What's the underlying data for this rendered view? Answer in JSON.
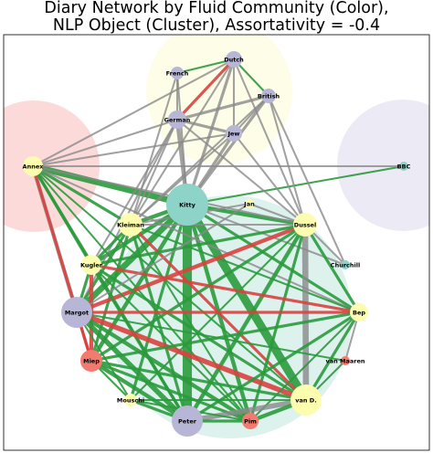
{
  "title": {
    "line1": "Diary Network by Fluid Community (Color),",
    "line2": "NLP Object (Cluster), Assortativity = -0.4"
  },
  "palette": {
    "community_purple": "#b8b6d6",
    "community_yellow": "#fdfdb0",
    "community_teal": "#8dd3c7",
    "community_salmon": "#f27a6e",
    "edge_green": "#2a9a3c",
    "edge_red": "#d8423f",
    "edge_gray": "#8a8a8a",
    "cluster_red": "#fbd3d3",
    "cluster_yellow": "#fdfde4",
    "cluster_lavender": "#e9e8f3",
    "cluster_teal": "#d7eeea"
  },
  "nodes": [
    {
      "id": "Kitty",
      "label": "Kitty",
      "community": "teal"
    },
    {
      "id": "Dutch",
      "label": "Dutch",
      "community": "purple"
    },
    {
      "id": "French",
      "label": "French",
      "community": "purple"
    },
    {
      "id": "British",
      "label": "British",
      "community": "purple"
    },
    {
      "id": "German",
      "label": "German",
      "community": "purple"
    },
    {
      "id": "Jew",
      "label": "Jew",
      "community": "purple"
    },
    {
      "id": "Annex",
      "label": "Annex",
      "community": "yellow"
    },
    {
      "id": "BBC",
      "label": "BBC",
      "community": "teal"
    },
    {
      "id": "Jan",
      "label": "Jan",
      "community": "yellow"
    },
    {
      "id": "Kleiman",
      "label": "Kleiman",
      "community": "yellow"
    },
    {
      "id": "Dussel",
      "label": "Dussel",
      "community": "yellow"
    },
    {
      "id": "Kugler",
      "label": "Kugler",
      "community": "yellow"
    },
    {
      "id": "Churchill",
      "label": "Churchill",
      "community": "teal"
    },
    {
      "id": "Margot",
      "label": "Margot",
      "community": "purple"
    },
    {
      "id": "Bep",
      "label": "Bep",
      "community": "yellow"
    },
    {
      "id": "Miep",
      "label": "Miep",
      "community": "salmon"
    },
    {
      "id": "vanMaaren",
      "label": "van Maaren",
      "community": "salmon"
    },
    {
      "id": "Mouschi",
      "label": "Mouschi",
      "community": "yellow"
    },
    {
      "id": "vanD",
      "label": "van D.",
      "community": "yellow"
    },
    {
      "id": "Peter",
      "label": "Peter",
      "community": "purple"
    },
    {
      "id": "Pim",
      "label": "Pim",
      "community": "salmon"
    }
  ],
  "edges": [
    {
      "source": "Kitty",
      "target": "Peter",
      "color": "green",
      "weight": 8
    },
    {
      "source": "Kitty",
      "target": "vanD",
      "color": "green",
      "weight": 7
    },
    {
      "source": "Kitty",
      "target": "Margot",
      "color": "green",
      "weight": 5
    },
    {
      "source": "Kitty",
      "target": "Annex",
      "color": "green",
      "weight": 5
    },
    {
      "source": "Kitty",
      "target": "Dussel",
      "color": "green",
      "weight": 3
    },
    {
      "source": "Kitty",
      "target": "Kugler",
      "color": "green",
      "weight": 3
    },
    {
      "source": "Kitty",
      "target": "Miep",
      "color": "green",
      "weight": 3
    },
    {
      "source": "Kitty",
      "target": "Pim",
      "color": "green",
      "weight": 3
    },
    {
      "source": "Kitty",
      "target": "Mouschi",
      "color": "green",
      "weight": 2
    },
    {
      "source": "Kitty",
      "target": "Bep",
      "color": "green",
      "weight": 2
    },
    {
      "source": "Kitty",
      "target": "BBC",
      "color": "green",
      "weight": 1
    },
    {
      "source": "Kitty",
      "target": "Kleiman",
      "color": "green",
      "weight": 3
    },
    {
      "source": "Kitty",
      "target": "German",
      "color": "gray",
      "weight": 3
    },
    {
      "source": "Kitty",
      "target": "Jew",
      "color": "gray",
      "weight": 2
    },
    {
      "source": "Kitty",
      "target": "British",
      "color": "gray",
      "weight": 2
    },
    {
      "source": "Kitty",
      "target": "Dutch",
      "color": "gray",
      "weight": 2
    },
    {
      "source": "Kitty",
      "target": "French",
      "color": "gray",
      "weight": 1
    },
    {
      "source": "Kitty",
      "target": "Churchill",
      "color": "gray",
      "weight": 1
    },
    {
      "source": "Dutch",
      "target": "German",
      "color": "red",
      "weight": 2
    },
    {
      "source": "Dutch",
      "target": "Jew",
      "color": "gray",
      "weight": 1
    },
    {
      "source": "Dutch",
      "target": "British",
      "color": "green",
      "weight": 1
    },
    {
      "source": "Dutch",
      "target": "French",
      "color": "green",
      "weight": 1
    },
    {
      "source": "Dutch",
      "target": "Annex",
      "color": "gray",
      "weight": 1
    },
    {
      "source": "Dutch",
      "target": "Kleiman",
      "color": "gray",
      "weight": 1
    },
    {
      "source": "Dutch",
      "target": "Dussel",
      "color": "gray",
      "weight": 1
    },
    {
      "source": "British",
      "target": "German",
      "color": "gray",
      "weight": 2
    },
    {
      "source": "British",
      "target": "Jew",
      "color": "gray",
      "weight": 1
    },
    {
      "source": "British",
      "target": "Dussel",
      "color": "gray",
      "weight": 1
    },
    {
      "source": "British",
      "target": "Kleiman",
      "color": "gray",
      "weight": 1
    },
    {
      "source": "French",
      "target": "German",
      "color": "gray",
      "weight": 1
    },
    {
      "source": "French",
      "target": "Kleiman",
      "color": "gray",
      "weight": 1
    },
    {
      "source": "German",
      "target": "Jew",
      "color": "gray",
      "weight": 2
    },
    {
      "source": "German",
      "target": "Annex",
      "color": "gray",
      "weight": 1
    },
    {
      "source": "German",
      "target": "Margot",
      "color": "gray",
      "weight": 1
    },
    {
      "source": "German",
      "target": "Dussel",
      "color": "gray",
      "weight": 1
    },
    {
      "source": "German",
      "target": "Kleiman",
      "color": "gray",
      "weight": 1
    },
    {
      "source": "German",
      "target": "Kugler",
      "color": "gray",
      "weight": 1
    },
    {
      "source": "Jew",
      "target": "Annex",
      "color": "gray",
      "weight": 1
    },
    {
      "source": "Jew",
      "target": "Dussel",
      "color": "gray",
      "weight": 1
    },
    {
      "source": "Jew",
      "target": "Kleiman",
      "color": "gray",
      "weight": 1
    },
    {
      "source": "Annex",
      "target": "Dussel",
      "color": "gray",
      "weight": 1
    },
    {
      "source": "Annex",
      "target": "Kleiman",
      "color": "green",
      "weight": 2
    },
    {
      "source": "Annex",
      "target": "Kugler",
      "color": "green",
      "weight": 2
    },
    {
      "source": "Annex",
      "target": "Margot",
      "color": "gray",
      "weight": 3
    },
    {
      "source": "Annex",
      "target": "Miep",
      "color": "red",
      "weight": 2
    },
    {
      "source": "Annex",
      "target": "Peter",
      "color": "green",
      "weight": 2
    },
    {
      "source": "Annex",
      "target": "vanD",
      "color": "green",
      "weight": 1
    },
    {
      "source": "Annex",
      "target": "Bep",
      "color": "gray",
      "weight": 1
    },
    {
      "source": "Annex",
      "target": "BBC",
      "color": "gray",
      "weight": 1
    },
    {
      "source": "Annex",
      "target": "Pim",
      "color": "green",
      "weight": 1
    },
    {
      "source": "Kleiman",
      "target": "Dussel",
      "color": "gray",
      "weight": 1
    },
    {
      "source": "Kleiman",
      "target": "Kugler",
      "color": "green",
      "weight": 2
    },
    {
      "source": "Kleiman",
      "target": "Margot",
      "color": "green",
      "weight": 2
    },
    {
      "source": "Kleiman",
      "target": "Peter",
      "color": "green",
      "weight": 2
    },
    {
      "source": "Kleiman",
      "target": "vanD",
      "color": "red",
      "weight": 2
    },
    {
      "source": "Kleiman",
      "target": "Bep",
      "color": "green",
      "weight": 1
    },
    {
      "source": "Kleiman",
      "target": "Miep",
      "color": "green",
      "weight": 2
    },
    {
      "source": "Kleiman",
      "target": "Pim",
      "color": "green",
      "weight": 1
    },
    {
      "source": "Dussel",
      "target": "Margot",
      "color": "red",
      "weight": 3
    },
    {
      "source": "Dussel",
      "target": "Peter",
      "color": "green",
      "weight": 3
    },
    {
      "source": "Dussel",
      "target": "vanD",
      "color": "gray",
      "weight": 5
    },
    {
      "source": "Dussel",
      "target": "Miep",
      "color": "green",
      "weight": 2
    },
    {
      "source": "Dussel",
      "target": "Kugler",
      "color": "green",
      "weight": 2
    },
    {
      "source": "Dussel",
      "target": "Bep",
      "color": "green",
      "weight": 2
    },
    {
      "source": "Dussel",
      "target": "Pim",
      "color": "green",
      "weight": 2
    },
    {
      "source": "Dussel",
      "target": "Mouschi",
      "color": "green",
      "weight": 1
    },
    {
      "source": "Dussel",
      "target": "Jan",
      "color": "gray",
      "weight": 1
    },
    {
      "source": "Kugler",
      "target": "Margot",
      "color": "green",
      "weight": 2
    },
    {
      "source": "Kugler",
      "target": "Miep",
      "color": "red",
      "weight": 3
    },
    {
      "source": "Kugler",
      "target": "Peter",
      "color": "green",
      "weight": 2
    },
    {
      "source": "Kugler",
      "target": "vanD",
      "color": "green",
      "weight": 2
    },
    {
      "source": "Kugler",
      "target": "Bep",
      "color": "red",
      "weight": 2
    },
    {
      "source": "Kugler",
      "target": "Pim",
      "color": "green",
      "weight": 1
    },
    {
      "source": "Margot",
      "target": "Peter",
      "color": "green",
      "weight": 4
    },
    {
      "source": "Margot",
      "target": "vanD",
      "color": "red",
      "weight": 4
    },
    {
      "source": "Margot",
      "target": "Pim",
      "color": "green",
      "weight": 3
    },
    {
      "source": "Margot",
      "target": "Miep",
      "color": "red",
      "weight": 2
    },
    {
      "source": "Margot",
      "target": "Bep",
      "color": "red",
      "weight": 2
    },
    {
      "source": "Margot",
      "target": "Mouschi",
      "color": "green",
      "weight": 1
    },
    {
      "source": "Margot",
      "target": "vanMaaren",
      "color": "green",
      "weight": 1
    },
    {
      "source": "Bep",
      "target": "Miep",
      "color": "green",
      "weight": 2
    },
    {
      "source": "Bep",
      "target": "Peter",
      "color": "green",
      "weight": 2
    },
    {
      "source": "Bep",
      "target": "vanD",
      "color": "green",
      "weight": 2
    },
    {
      "source": "Bep",
      "target": "Pim",
      "color": "green",
      "weight": 1
    },
    {
      "source": "Bep",
      "target": "vanMaaren",
      "color": "gray",
      "weight": 1
    },
    {
      "source": "Miep",
      "target": "Peter",
      "color": "green",
      "weight": 3
    },
    {
      "source": "Miep",
      "target": "vanD",
      "color": "green",
      "weight": 2
    },
    {
      "source": "Miep",
      "target": "Pim",
      "color": "green",
      "weight": 2
    },
    {
      "source": "Miep",
      "target": "Mouschi",
      "color": "green",
      "weight": 1
    },
    {
      "source": "Peter",
      "target": "vanD",
      "color": "gray",
      "weight": 4
    },
    {
      "source": "Peter",
      "target": "Pim",
      "color": "green",
      "weight": 2
    },
    {
      "source": "Peter",
      "target": "Mouschi",
      "color": "green",
      "weight": 2
    },
    {
      "source": "vanD",
      "target": "Pim",
      "color": "green",
      "weight": 3
    },
    {
      "source": "vanD",
      "target": "vanMaaren",
      "color": "green",
      "weight": 1
    },
    {
      "source": "vanD",
      "target": "Mouschi",
      "color": "green",
      "weight": 1
    },
    {
      "source": "Pim",
      "target": "Mouschi",
      "color": "green",
      "weight": 1
    },
    {
      "source": "Jan",
      "target": "Kleiman",
      "color": "gray",
      "weight": 1
    },
    {
      "source": "Jan",
      "target": "Margot",
      "color": "gray",
      "weight": 1
    },
    {
      "source": "Churchill",
      "target": "British",
      "color": "gray",
      "weight": 1
    },
    {
      "source": "Churchill",
      "target": "Dussel",
      "color": "gray",
      "weight": 1
    }
  ]
}
